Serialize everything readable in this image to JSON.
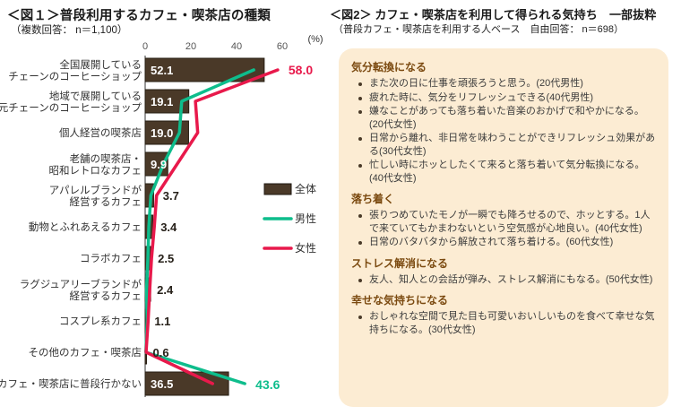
{
  "fig1": {
    "title": "＜図１＞普段利用するカフェ・喫茶店の種類",
    "subtitle": "（複数回答： n＝1,100）",
    "percent_label": "(%)",
    "colors": {
      "bar": "#4a3928",
      "bar_border": "#261d12",
      "male": "#0ebd8c",
      "female": "#e8194b",
      "axis": "#333333",
      "tick_text": "#555555",
      "value_inside": "#ffffff",
      "value_outside": "#262019"
    },
    "legend": [
      {
        "label": "全体",
        "type": "bar"
      },
      {
        "label": "男性",
        "type": "line"
      },
      {
        "label": "女性",
        "type": "line"
      }
    ]
  },
  "chart_data": {
    "type": "bar",
    "title": "普段利用するカフェ・喫茶店の種類",
    "xlabel": "(%)",
    "ylabel": "",
    "xlim": [
      0,
      72
    ],
    "ticks": [
      0,
      20,
      40,
      60
    ],
    "grid": false,
    "legend_position": "right-middle",
    "categories": [
      "全国展開しているチェーンのコーヒーショップ",
      "地域で展開している地元チェーンのコーヒーショップ",
      "個人経営の喫茶店",
      "老舗の喫茶店・昭和レトロなカフェ",
      "アパレルブランドが経営するカフェ",
      "動物とふれあえるカフェ",
      "コラボカフェ",
      "ラグジュアリーブランドが経営するカフェ",
      "コスプレ系カフェ",
      "その他のカフェ・喫茶店",
      "カフェ・喫茶店に普段行かない"
    ],
    "category_lines": [
      [
        "全国展開している",
        "チェーンのコーヒーショップ"
      ],
      [
        "地域で展開している",
        "地元チェーンのコーヒーショップ"
      ],
      [
        "個人経営の喫茶店"
      ],
      [
        "老舗の喫茶店・",
        "昭和レトロなカフェ"
      ],
      [
        "アパレルブランドが",
        "経営するカフェ"
      ],
      [
        "動物とふれあえるカフェ"
      ],
      [
        "コラボカフェ"
      ],
      [
        "ラグジュアリーブランドが",
        "経営するカフェ"
      ],
      [
        "コスプレ系カフェ"
      ],
      [
        "その他のカフェ・喫茶店"
      ],
      [
        "カフェ・喫茶店に普段行かない"
      ]
    ],
    "series": [
      {
        "name": "全体",
        "render": "bar",
        "values": [
          52.1,
          19.1,
          19.0,
          9.9,
          3.7,
          3.4,
          2.5,
          2.4,
          1.1,
          0.6,
          36.5
        ],
        "value_labels": [
          "52.1",
          "19.1",
          "19.0",
          "9.9",
          "3.7",
          "3.4",
          "2.5",
          "2.4",
          "1.1",
          "0.6",
          "36.5"
        ]
      },
      {
        "name": "男性",
        "render": "line",
        "values": [
          47.5,
          16.0,
          15.0,
          8.0,
          2.5,
          1.6,
          1.2,
          0.6,
          0.9,
          0.3,
          43.6
        ]
      },
      {
        "name": "女性",
        "render": "line",
        "values": [
          58.0,
          22.0,
          23.0,
          14.0,
          5.0,
          4.0,
          2.8,
          2.0,
          1.3,
          0.4,
          29.5
        ]
      }
    ],
    "annotations": [
      {
        "series": "女性",
        "index": 0,
        "text": "58.0"
      },
      {
        "series": "男性",
        "index": 10,
        "text": "43.6"
      }
    ]
  },
  "fig2": {
    "title": "＜図2＞ カフェ・喫茶店を利用して得られる気持ち　一部抜粋",
    "subtitle": "（普段カフェ・喫茶店を利用する人ベース　自由回答： n＝698）",
    "panel_bg": "#fcecd3",
    "heading_color": "#7b4a10",
    "sections": [
      {
        "heading": "気分転換になる",
        "bullets": [
          "また次の日に仕事を頑張ろうと思う。(20代男性)",
          "疲れた時に、気分をリフレッシュできる(40代男性)",
          "嫌なことがあっても落ち着いた音楽のおかげで和やかになる。(20代女性)",
          "日常から離れ、非日常を味わうことができリフレッシュ効果がある(30代女性)",
          "忙しい時にホッとしたくて来ると落ち着いて気分転換になる。(40代女性)"
        ]
      },
      {
        "heading": "落ち着く",
        "bullets": [
          "張りつめていたモノが一瞬でも降ろせるので、ホッとする。1人で来ていてもかまわないという空気感が心地良い。(40代女性)",
          "日常のバタバタから解放されて落ち着ける。(60代女性)"
        ]
      },
      {
        "heading": "ストレス解消になる",
        "bullets": [
          "友人、知人との会話が弾み、ストレス解消にもなる。(50代女性)"
        ]
      },
      {
        "heading": "幸せな気持ちになる",
        "bullets": [
          "おしゃれな空間で見た目も可愛いおいしいものを食べて幸せな気持ちになる。(30代女性)"
        ]
      }
    ]
  }
}
